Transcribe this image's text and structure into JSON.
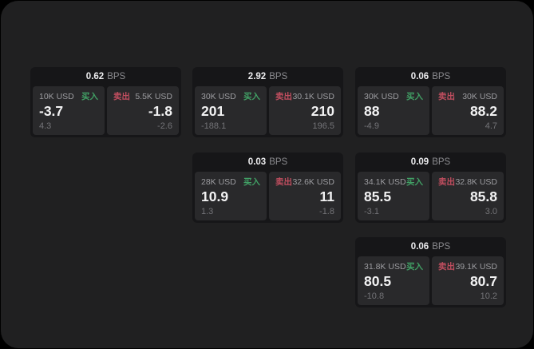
{
  "colors": {
    "page_outside": "#000000",
    "window_background": "#202021",
    "card_background": "#161618",
    "panel_background": "#29292b",
    "buy_accent": "#41a065",
    "sell_accent": "#c04e5f",
    "primary_text": "#f2f2f3",
    "muted_text": "#9c9ca0"
  },
  "labels": {
    "buy": "买入",
    "sell": "卖出",
    "bps_unit": "BPS"
  },
  "cards": [
    {
      "bps": "0.62",
      "unit": "BPS",
      "buy": {
        "amount": "10K USD",
        "label": "买入",
        "value": "-3.7",
        "change": "4.3"
      },
      "sell": {
        "label": "卖出",
        "amount": "5.5K USD",
        "value": "-1.8",
        "change": "-2.6"
      }
    },
    {
      "bps": "2.92",
      "unit": "BPS",
      "buy": {
        "amount": "30K USD",
        "label": "买入",
        "value": "201",
        "change": "-188.1"
      },
      "sell": {
        "label": "卖出",
        "amount": "30.1K USD",
        "value": "210",
        "change": "196.5"
      }
    },
    {
      "bps": "0.06",
      "unit": "BPS",
      "buy": {
        "amount": "30K USD",
        "label": "买入",
        "value": "88",
        "change": "-4.9"
      },
      "sell": {
        "label": "卖出",
        "amount": "30K USD",
        "value": "88.2",
        "change": "4.7"
      }
    },
    {
      "bps": "0.03",
      "unit": "BPS",
      "buy": {
        "amount": "28K USD",
        "label": "买入",
        "value": "10.9",
        "change": "1.3"
      },
      "sell": {
        "label": "卖出",
        "amount": "32.6K USD",
        "value": "11",
        "change": "-1.8"
      }
    },
    {
      "bps": "0.09",
      "unit": "BPS",
      "buy": {
        "amount": "34.1K USD",
        "label": "买入",
        "value": "85.5",
        "change": "-3.1"
      },
      "sell": {
        "label": "卖出",
        "amount": "32.8K USD",
        "value": "85.8",
        "change": "3.0"
      }
    },
    {
      "bps": "0.06",
      "unit": "BPS",
      "buy": {
        "amount": "31.8K USD",
        "label": "买入",
        "value": "80.5",
        "change": "-10.8"
      },
      "sell": {
        "label": "卖出",
        "amount": "39.1K USD",
        "value": "80.7",
        "change": "10.2"
      }
    }
  ]
}
